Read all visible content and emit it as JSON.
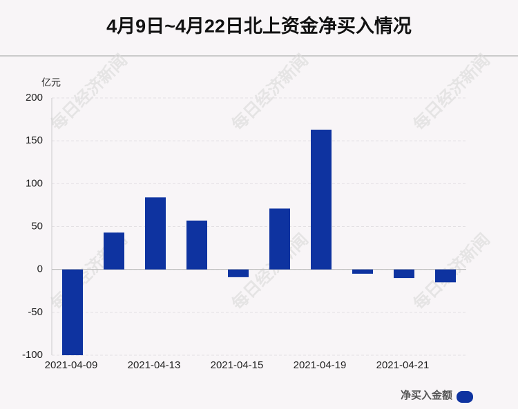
{
  "chart_data": {
    "type": "bar",
    "title": "4月9日~4月22日北上资金净买入情况",
    "y_unit": "亿元",
    "watermark": "每日经济新闻",
    "categories": [
      "2021-04-09",
      null,
      "2021-04-13",
      null,
      "2021-04-15",
      null,
      "2021-04-19",
      null,
      "2021-04-21",
      null
    ],
    "series": [
      {
        "name": "净买入金额",
        "color": "#0e33a0",
        "values": [
          -100,
          43,
          84,
          57,
          -9,
          71,
          163,
          -5,
          -10,
          -15
        ]
      }
    ],
    "ylim": [
      -100,
      200
    ],
    "yticks": [
      -100,
      -50,
      0,
      50,
      100,
      150,
      200
    ],
    "grid": true
  }
}
